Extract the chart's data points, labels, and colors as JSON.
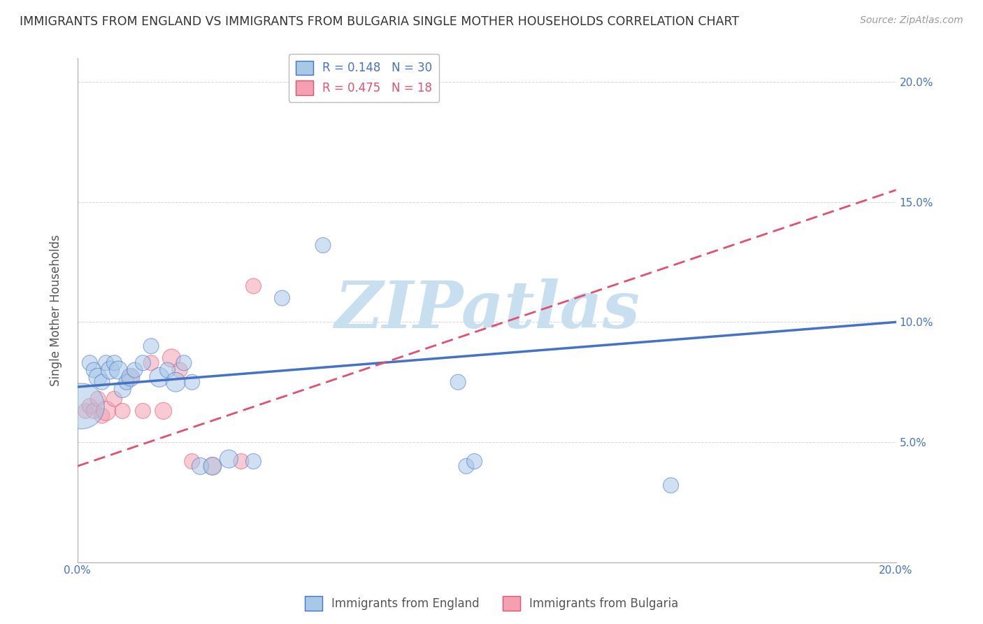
{
  "title": "IMMIGRANTS FROM ENGLAND VS IMMIGRANTS FROM BULGARIA SINGLE MOTHER HOUSEHOLDS CORRELATION CHART",
  "source": "Source: ZipAtlas.com",
  "ylabel": "Single Mother Households",
  "xlim": [
    0.0,
    0.2
  ],
  "ylim": [
    0.0,
    0.21
  ],
  "xticks": [
    0.0,
    0.05,
    0.1,
    0.15,
    0.2
  ],
  "yticks": [
    0.05,
    0.1,
    0.15,
    0.2
  ],
  "xtick_labels": [
    "0.0%",
    "",
    "",
    "",
    "20.0%"
  ],
  "ytick_labels": [
    "5.0%",
    "10.0%",
    "15.0%",
    "20.0%"
  ],
  "legend1_label": "Immigrants from England",
  "legend2_label": "Immigrants from Bulgaria",
  "R_england": 0.148,
  "N_england": 30,
  "R_bulgaria": 0.475,
  "N_bulgaria": 18,
  "color_england": "#A8C8E8",
  "color_bulgaria": "#F4A0B0",
  "line_color_england": "#4472C4",
  "line_color_bulgaria": "#E05070",
  "watermark": "ZIPatlas",
  "watermark_color": "#C8DFF0",
  "eng_trend_x0": 0.0,
  "eng_trend_y0": 0.073,
  "eng_trend_x1": 0.2,
  "eng_trend_y1": 0.1,
  "bul_trend_x0": 0.0,
  "bul_trend_y0": 0.04,
  "bul_trend_x1": 0.2,
  "bul_trend_y1": 0.155,
  "england_x": [
    0.001,
    0.003,
    0.004,
    0.005,
    0.006,
    0.007,
    0.008,
    0.009,
    0.01,
    0.011,
    0.012,
    0.013,
    0.014,
    0.016,
    0.018,
    0.02,
    0.022,
    0.024,
    0.026,
    0.028,
    0.03,
    0.033,
    0.037,
    0.043,
    0.05,
    0.06,
    0.093,
    0.095,
    0.097,
    0.145
  ],
  "england_y": [
    0.065,
    0.083,
    0.08,
    0.077,
    0.075,
    0.083,
    0.08,
    0.083,
    0.08,
    0.072,
    0.075,
    0.077,
    0.08,
    0.083,
    0.09,
    0.077,
    0.08,
    0.075,
    0.083,
    0.075,
    0.04,
    0.04,
    0.043,
    0.042,
    0.11,
    0.132,
    0.075,
    0.04,
    0.042,
    0.032
  ],
  "england_sizes": [
    2200,
    250,
    250,
    350,
    250,
    250,
    350,
    250,
    350,
    300,
    250,
    350,
    250,
    250,
    250,
    400,
    250,
    400,
    250,
    250,
    300,
    350,
    350,
    250,
    250,
    250,
    250,
    250,
    250,
    250
  ],
  "bulgaria_x": [
    0.002,
    0.003,
    0.004,
    0.005,
    0.006,
    0.007,
    0.009,
    0.011,
    0.013,
    0.016,
    0.018,
    0.021,
    0.023,
    0.025,
    0.028,
    0.033,
    0.04,
    0.043
  ],
  "bulgaria_y": [
    0.063,
    0.065,
    0.063,
    0.068,
    0.061,
    0.063,
    0.068,
    0.063,
    0.077,
    0.063,
    0.083,
    0.063,
    0.085,
    0.08,
    0.042,
    0.04,
    0.042,
    0.115
  ],
  "bulgaria_sizes": [
    250,
    250,
    250,
    250,
    250,
    400,
    250,
    250,
    250,
    250,
    250,
    300,
    350,
    250,
    250,
    300,
    250,
    250
  ],
  "bg_color": "#FFFFFF",
  "grid_color": "#CCCCCC"
}
